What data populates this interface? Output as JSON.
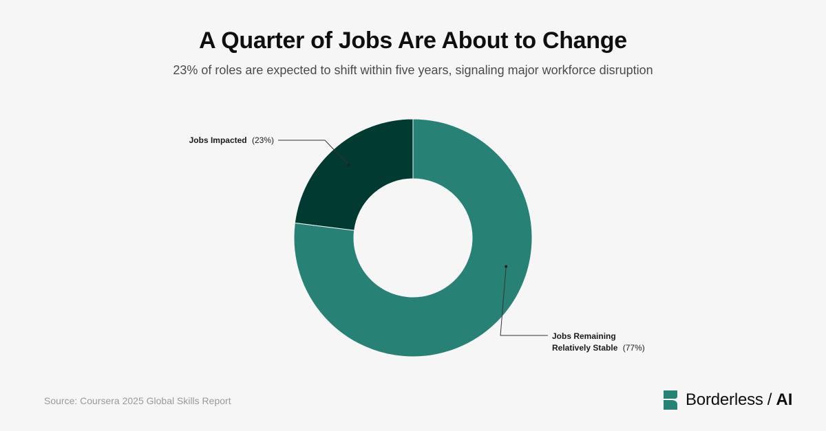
{
  "header": {
    "title": "A Quarter of Jobs Are About to Change",
    "subtitle": "23% of roles are expected to shift within five years, signaling major workforce disruption"
  },
  "chart_data": {
    "type": "pie",
    "title": "A Quarter of Jobs Are About to Change",
    "subtitle": "23% of roles are expected to shift within five years, signaling major workforce disruption",
    "donut": true,
    "unit": "%",
    "slices": [
      {
        "label_bold": "Jobs Impacted",
        "label_bold_line2": "",
        "value_text": "(23%)",
        "value": 23,
        "color": "#003a30"
      },
      {
        "label_bold": "Jobs Remaining",
        "label_bold_line2": "Relatively Stable",
        "value_text": "(77%)",
        "value": 77,
        "color": "#278275"
      }
    ]
  },
  "footer": {
    "source": "Source: Coursera 2025 Global Skills Report",
    "brand_name": "Borderless",
    "brand_sep": "/",
    "brand_suffix": "AI",
    "brand_color": "#278275"
  }
}
